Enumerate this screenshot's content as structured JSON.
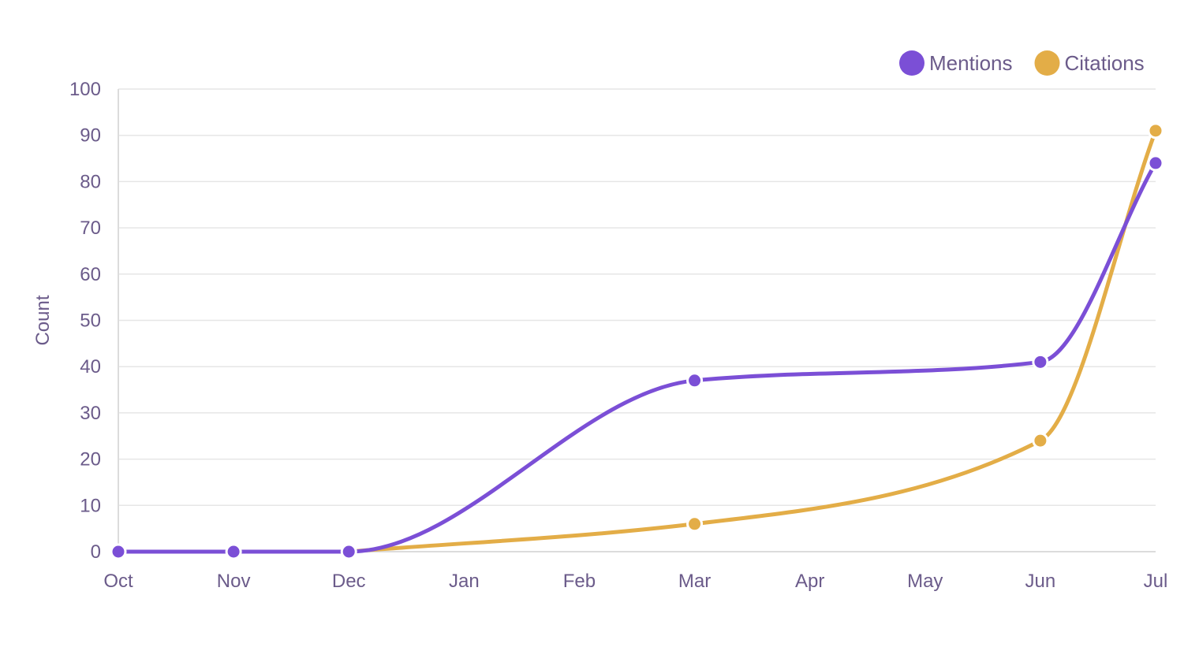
{
  "chart_data": {
    "type": "line",
    "title": "",
    "xlabel": "",
    "ylabel": "Count",
    "categories": [
      "Oct",
      "Nov",
      "Dec",
      "Jan",
      "Feb",
      "Mar",
      "Apr",
      "May",
      "Jun",
      "Jul"
    ],
    "ylim": [
      0,
      100
    ],
    "yticks": [
      0,
      10,
      20,
      30,
      40,
      50,
      60,
      70,
      80,
      90,
      100
    ],
    "grid": true,
    "legend_position": "top-right",
    "smooth": true,
    "series": [
      {
        "name": "Mentions",
        "color": "#7b4fd6",
        "points": [
          {
            "x": "Oct",
            "y": 0
          },
          {
            "x": "Nov",
            "y": 0
          },
          {
            "x": "Dec",
            "y": 0
          },
          {
            "x": "Mar",
            "y": 37
          },
          {
            "x": "Jun",
            "y": 41
          },
          {
            "x": "Jul",
            "y": 84
          }
        ]
      },
      {
        "name": "Citations",
        "color": "#e3ad47",
        "points": [
          {
            "x": "Dec",
            "y": 0
          },
          {
            "x": "Mar",
            "y": 6
          },
          {
            "x": "Jun",
            "y": 24
          },
          {
            "x": "Jul",
            "y": 91
          }
        ]
      }
    ]
  }
}
